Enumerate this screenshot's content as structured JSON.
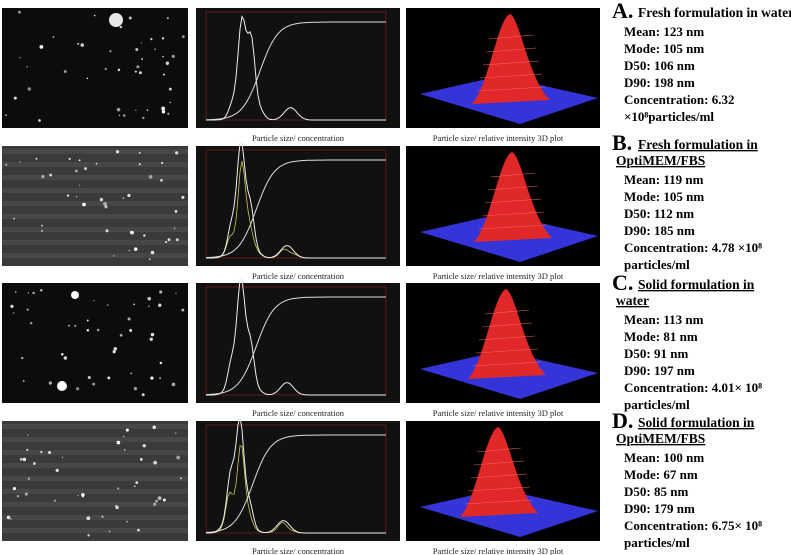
{
  "panels": [
    {
      "letter": "A.",
      "title": [
        "Fresh formulation  in water"
      ],
      "title_underlined": false,
      "lines": [
        "Mean: 123 nm",
        "Mode: 105 nm",
        "D50: 106 nm",
        "D90: 198 nm",
        "Concentration: 6.32",
        "×10⁸particles/ml"
      ],
      "captions": [
        "Particle size/ concentration",
        "Particle size/ relative intensity 3D plot"
      ]
    },
    {
      "letter": "B.",
      "title": [
        "Fresh formulation in",
        "OptiMEM/FBS"
      ],
      "title_underlined": true,
      "lines": [
        "Mean: 119 nm",
        "Mode: 105 nm",
        "D50: 112 nm",
        "D90: 185 nm",
        "Concentration: 4.78 ×10⁸",
        "particles/ml"
      ],
      "captions": [
        "Particle size/ concentration",
        "Particle size/ relative intensity 3D plot"
      ]
    },
    {
      "letter": "C.",
      "title": [
        "Solid formulation in",
        "water"
      ],
      "title_underlined": true,
      "lines": [
        "Mean: 113 nm",
        "Mode: 81 nm",
        "D50: 91 nm",
        "D90: 197 nm",
        "Concentration: 4.01× 10⁸",
        "particles/ml"
      ],
      "captions": [
        "Particle size/ concentration",
        "Particle size/ relative intensity 3D plot"
      ]
    },
    {
      "letter": "D.",
      "title": [
        "Solid formulation in",
        "OptiMEM/FBS"
      ],
      "title_underlined": true,
      "lines": [
        "Mean: 100 nm",
        "Mode: 67 nm",
        "D50: 85 nm",
        "D90: 179 nm",
        "Concentration: 6.75× 10⁸",
        "particles/ml"
      ],
      "captions": [
        "Particle size/ concentration",
        "Particle size/ relative intensity 3D plot"
      ]
    }
  ]
}
